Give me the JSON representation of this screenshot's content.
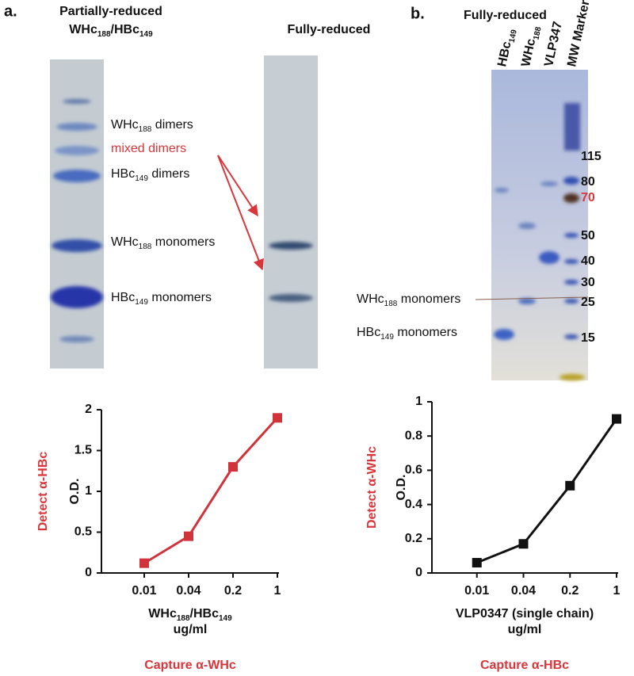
{
  "panel_a": {
    "label": "a.",
    "left_title": [
      [
        {
          "t": "Partially-reduced"
        }
      ],
      [
        {
          "t": "WHc"
        },
        {
          "t": "188",
          "sub": true
        },
        {
          "t": "/HBc"
        },
        {
          "t": "149",
          "sub": true
        }
      ]
    ],
    "right_title": "Fully-reduced",
    "band_labels": [
      [
        {
          "t": "WHc"
        },
        {
          "t": "188",
          "sub": true
        },
        {
          "t": " dimers"
        }
      ],
      [
        {
          "t": "mixed dimers"
        }
      ],
      [
        {
          "t": "HBc"
        },
        {
          "t": "149",
          "sub": true
        },
        {
          "t": " dimers"
        }
      ],
      [
        {
          "t": "WHc"
        },
        {
          "t": "188",
          "sub": true
        },
        {
          "t": " monomers"
        }
      ],
      [
        {
          "t": "HBc"
        },
        {
          "t": "149",
          "sub": true
        },
        {
          "t": " monomers"
        }
      ]
    ]
  },
  "panel_b": {
    "label": "b.",
    "title": "Fully-reduced",
    "lanes": [
      [
        {
          "t": "HBc"
        },
        {
          "t": "149",
          "sub": true
        }
      ],
      [
        {
          "t": "WHc"
        },
        {
          "t": "188",
          "sub": true
        }
      ],
      [
        {
          "t": "VLP347"
        }
      ],
      [
        {
          "t": "MW Marker"
        }
      ]
    ],
    "markers": [
      "115",
      "80",
      "70",
      "50",
      "40",
      "30",
      "25",
      "15"
    ],
    "band_labels": [
      [
        {
          "t": "WHc"
        },
        {
          "t": "188",
          "sub": true
        },
        {
          "t": " monomers"
        }
      ],
      [
        {
          "t": "HBc"
        },
        {
          "t": "149",
          "sub": true
        },
        {
          "t": " monomers"
        }
      ]
    ]
  },
  "chart_data": [
    {
      "type": "line",
      "categories": [
        "0.01",
        "0.04",
        "0.2",
        "1"
      ],
      "values": [
        0.12,
        0.45,
        1.3,
        1.9
      ],
      "color": "#d0343a",
      "ylim": [
        0,
        2
      ],
      "yticks": [
        0,
        0.5,
        1,
        1.5,
        2
      ],
      "y_label": "O.D.",
      "x_label": [
        [
          {
            "t": "WHc"
          },
          {
            "t": "188",
            "sub": true
          },
          {
            "t": "/HBc"
          },
          {
            "t": "149",
            "sub": true
          }
        ],
        [
          {
            "t": "ug/ml"
          }
        ]
      ],
      "detect": "Detect α-HBc",
      "capture": "Capture α-WHc"
    },
    {
      "type": "line",
      "categories": [
        "0.01",
        "0.04",
        "0.2",
        "1"
      ],
      "values": [
        0.06,
        0.17,
        0.51,
        0.9
      ],
      "color": "#111111",
      "ylim": [
        0,
        1
      ],
      "yticks": [
        0,
        0.2,
        0.4,
        0.6,
        0.8,
        1
      ],
      "y_label": "O.D.",
      "x_label": [
        [
          {
            "t": "VLP0347 (single chain)"
          }
        ],
        [
          {
            "t": "ug/ml"
          }
        ]
      ],
      "detect": "Detect α-WHc",
      "capture": "Capture α-HBc"
    }
  ]
}
